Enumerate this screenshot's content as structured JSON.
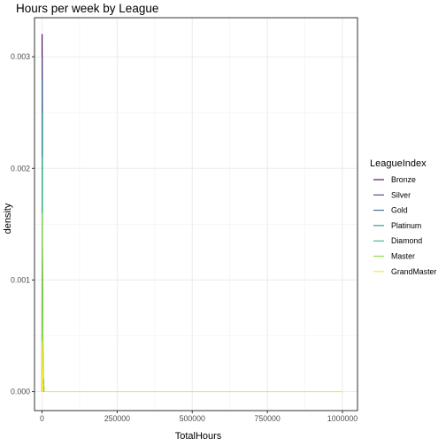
{
  "chart_data": {
    "type": "line",
    "title": "Hours per week by League",
    "xlabel": "TotalHours",
    "ylabel": "density",
    "xlim": [
      -25000,
      1050000
    ],
    "ylim": [
      -0.00017,
      0.00335
    ],
    "x_ticks": [
      0,
      250000,
      500000,
      750000,
      1000000
    ],
    "x_tick_labels": [
      "0",
      "250000",
      "500000",
      "750000",
      "1000000"
    ],
    "y_ticks": [
      0.0,
      0.001,
      0.002,
      0.003
    ],
    "y_tick_labels": [
      "0.000",
      "0.001",
      "0.002",
      "0.003"
    ],
    "grid": true,
    "legend": {
      "title": "LeagueIndex",
      "placement": "right"
    },
    "series": [
      {
        "name": "Bronze",
        "color": "#440154",
        "points": [
          [
            0,
            0.0
          ],
          [
            300,
            0.0032
          ],
          [
            1500,
            0.0012
          ],
          [
            3000,
            0.0002
          ],
          [
            6000,
            0.0
          ]
        ]
      },
      {
        "name": "Silver",
        "color": "#443983",
        "points": [
          [
            0,
            0.0
          ],
          [
            300,
            0.003
          ],
          [
            1500,
            0.0011
          ],
          [
            3000,
            0.0002
          ],
          [
            6000,
            0.0
          ]
        ]
      },
      {
        "name": "Gold",
        "color": "#31688e",
        "points": [
          [
            0,
            0.0
          ],
          [
            350,
            0.0028
          ],
          [
            1600,
            0.001
          ],
          [
            3200,
            0.0002
          ],
          [
            6000,
            0.0
          ]
        ]
      },
      {
        "name": "Platinum",
        "color": "#21918c",
        "points": [
          [
            0,
            0.0
          ],
          [
            400,
            0.0025
          ],
          [
            1800,
            0.0009
          ],
          [
            3500,
            0.0002
          ],
          [
            6000,
            0.0
          ]
        ]
      },
      {
        "name": "Diamond",
        "color": "#35b779",
        "points": [
          [
            0,
            0.0
          ],
          [
            450,
            0.0021
          ],
          [
            2000,
            0.0008
          ],
          [
            4000,
            0.0001
          ],
          [
            7000,
            0.0
          ]
        ]
      },
      {
        "name": "Master",
        "color": "#90d743",
        "points": [
          [
            0,
            0.0
          ],
          [
            500,
            0.0016
          ],
          [
            2200,
            0.0006
          ],
          [
            4500,
            0.0001
          ],
          [
            8000,
            0.0
          ]
        ]
      },
      {
        "name": "GrandMaster",
        "color": "#fde725",
        "points": [
          [
            0,
            0.0
          ],
          [
            600,
            0.00045
          ],
          [
            3000,
            2e-05
          ],
          [
            10000,
            0.0
          ],
          [
            1000000,
            0.0
          ]
        ]
      }
    ]
  }
}
